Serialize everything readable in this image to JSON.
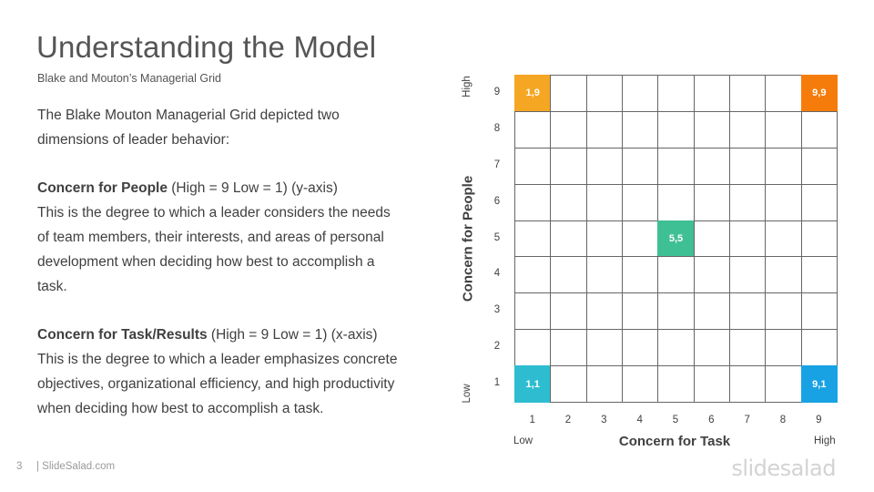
{
  "slide": {
    "title": "Understanding the Model",
    "subtitle": "Blake and Mouton’s Managerial  Grid",
    "intro_line1": "The Blake Mouton Managerial Grid depicted two",
    "intro_line2": "dimensions of leader behavior:",
    "people_heading": "Concern for People",
    "people_range": " (High = 9 Low = 1) (y-axis)",
    "people_line1": "This is the degree  to which a leader considers the needs",
    "people_line2": "of team members, their interests, and areas of personal",
    "people_line3": "development  when deciding how best to accomplish a",
    "people_line4": "task.",
    "task_heading": "Concern for Task/Results",
    "task_range": " (High = 9 Low = 1) (x-axis)",
    "task_line1": "This is the degree  to which a leader emphasizes concrete",
    "task_line2": "objectives, organizational efficiency, and high productivity",
    "task_line3": "when deciding how best to accomplish a task."
  },
  "footer": {
    "page_number": "3",
    "site": "| SlideSalad.com",
    "logo": "slidesalad"
  },
  "grid": {
    "x_axis_title": "Concern for Task",
    "y_axis_title": "Concern for People",
    "x_low_label": "Low",
    "x_high_label": "High",
    "y_low_label": "Low",
    "y_high_label": "High",
    "x_ticks": [
      "1",
      "2",
      "3",
      "4",
      "5",
      "6",
      "7",
      "8",
      "9"
    ],
    "y_ticks": [
      "9",
      "8",
      "7",
      "6",
      "5",
      "4",
      "3",
      "2",
      "1"
    ],
    "highlighted_cells": [
      {
        "task": 1,
        "people": 9,
        "label": "1,9",
        "color": "#f5a623"
      },
      {
        "task": 9,
        "people": 9,
        "label": "9,9",
        "color": "#f57c0a"
      },
      {
        "task": 5,
        "people": 5,
        "label": "5,5",
        "color": "#3fbf94"
      },
      {
        "task": 1,
        "people": 1,
        "label": "1,1",
        "color": "#2ebdd0"
      },
      {
        "task": 9,
        "people": 1,
        "label": "9,1",
        "color": "#19a2e3"
      }
    ]
  }
}
